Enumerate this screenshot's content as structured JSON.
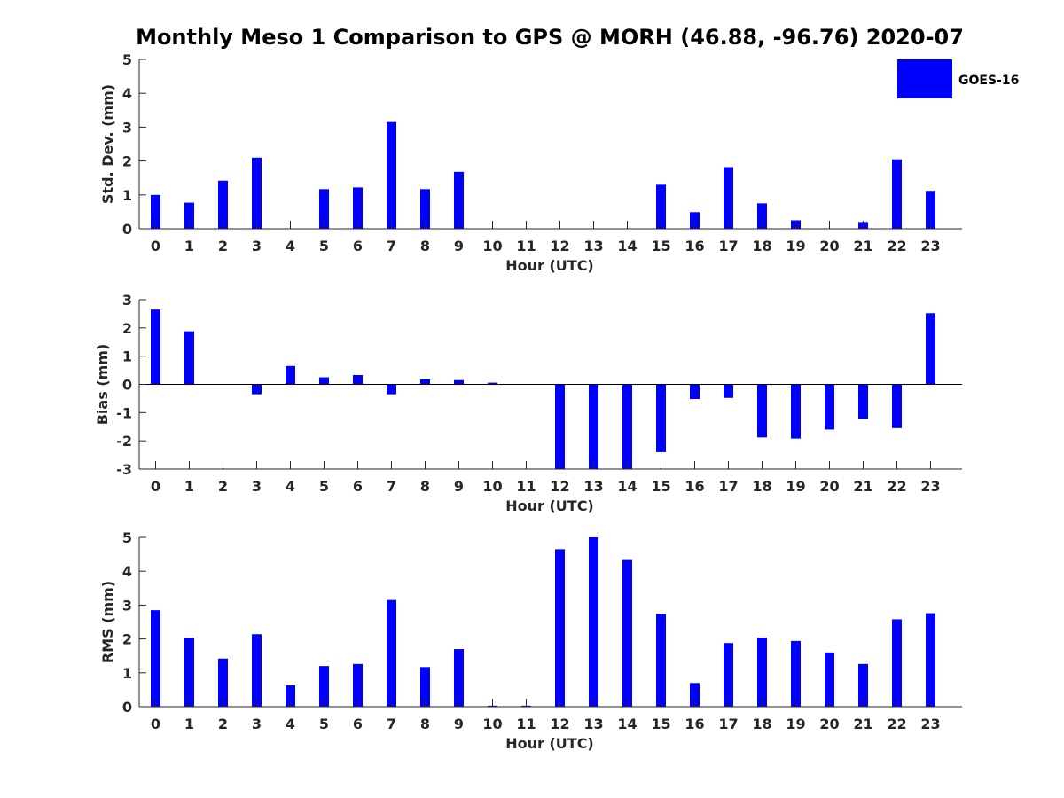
{
  "title": "Monthly Meso 1 Comparison to GPS @ MORH (46.88, -96.76) 2020-07",
  "legend": {
    "label": "GOES-16",
    "color": "#0000ff"
  },
  "chart_data": [
    {
      "type": "bar",
      "ylabel": "Std. Dev. (mm)",
      "xlabel": "Hour (UTC)",
      "ylim": [
        0,
        5
      ],
      "yticks": [
        0,
        1,
        2,
        3,
        4,
        5
      ],
      "categories": [
        "0",
        "1",
        "2",
        "3",
        "4",
        "5",
        "6",
        "7",
        "8",
        "9",
        "10",
        "11",
        "12",
        "13",
        "14",
        "15",
        "16",
        "17",
        "18",
        "19",
        "20",
        "21",
        "22",
        "23"
      ],
      "values": [
        1.0,
        0.77,
        1.42,
        2.1,
        0,
        1.17,
        1.22,
        3.15,
        1.17,
        1.68,
        0,
        0,
        0,
        0,
        0,
        1.3,
        0.49,
        1.82,
        0.75,
        0.25,
        0,
        0.2,
        2.05,
        1.12
      ],
      "bar_color": "#0000ff",
      "legend_position": "top-right"
    },
    {
      "type": "bar",
      "ylabel": "Bias (mm)",
      "xlabel": "Hour (UTC)",
      "ylim": [
        -3,
        3
      ],
      "yticks": [
        -3,
        -2,
        -1,
        0,
        1,
        2,
        3
      ],
      "categories": [
        "0",
        "1",
        "2",
        "3",
        "4",
        "5",
        "6",
        "7",
        "8",
        "9",
        "10",
        "11",
        "12",
        "13",
        "14",
        "15",
        "16",
        "17",
        "18",
        "19",
        "20",
        "21",
        "22",
        "23"
      ],
      "values": [
        2.65,
        1.88,
        0,
        -0.35,
        0.65,
        0.25,
        0.33,
        -0.35,
        0.18,
        0.15,
        0.06,
        0,
        -3.0,
        -3.0,
        -3.0,
        -2.4,
        -0.52,
        -0.48,
        -1.88,
        -1.92,
        -1.6,
        -1.22,
        -1.55,
        2.52
      ],
      "bar_color": "#0000ff"
    },
    {
      "type": "bar",
      "ylabel": "RMS (mm)",
      "xlabel": "Hour (UTC)",
      "ylim": [
        0,
        5
      ],
      "yticks": [
        0,
        1,
        2,
        3,
        4,
        5
      ],
      "categories": [
        "0",
        "1",
        "2",
        "3",
        "4",
        "5",
        "6",
        "7",
        "8",
        "9",
        "10",
        "11",
        "12",
        "13",
        "14",
        "15",
        "16",
        "17",
        "18",
        "19",
        "20",
        "21",
        "22",
        "23"
      ],
      "values": [
        2.85,
        2.03,
        1.42,
        2.14,
        0.63,
        1.2,
        1.26,
        3.15,
        1.17,
        1.7,
        0.03,
        0.03,
        4.65,
        5.0,
        4.33,
        2.74,
        0.7,
        1.88,
        2.04,
        1.94,
        1.6,
        1.26,
        2.58,
        2.76
      ],
      "bar_color": "#0000ff"
    }
  ]
}
